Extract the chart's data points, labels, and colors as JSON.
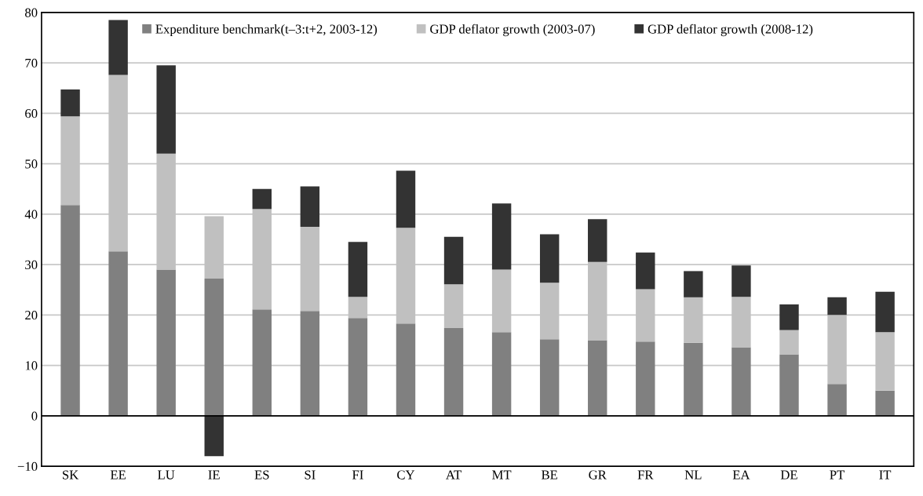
{
  "chart_data": {
    "type": "bar",
    "stacked": true,
    "categories": [
      "SK",
      "EE",
      "LU",
      "IE",
      "ES",
      "SI",
      "FI",
      "CY",
      "AT",
      "MT",
      "BE",
      "GR",
      "FR",
      "NL",
      "EA",
      "DE",
      "PT",
      "IT"
    ],
    "series": [
      {
        "name": "Expenditure benchmark(t–3:t+2, 2003-12)",
        "color": "#808080",
        "values": [
          41.8,
          32.6,
          29.0,
          27.2,
          21.1,
          20.8,
          19.4,
          18.3,
          17.4,
          16.6,
          15.2,
          15.0,
          14.7,
          14.5,
          13.6,
          12.2,
          6.3,
          5.0
        ]
      },
      {
        "name": "GDP deflator growth (2003-07)",
        "color": "#c0c0c0",
        "values": [
          17.6,
          35.0,
          23.0,
          12.4,
          19.9,
          16.7,
          4.2,
          19.0,
          8.7,
          12.4,
          11.2,
          15.5,
          10.4,
          9.0,
          10.0,
          4.8,
          13.7,
          11.6
        ]
      },
      {
        "name": "GDP deflator growth (2008-12)",
        "color": "#333333",
        "values": [
          5.3,
          10.9,
          17.5,
          -8.0,
          4.0,
          8.0,
          10.9,
          11.3,
          9.4,
          13.1,
          9.6,
          8.5,
          7.3,
          5.2,
          6.2,
          5.1,
          3.5,
          8.0
        ]
      }
    ],
    "ylim": [
      -10,
      80
    ],
    "yticks": [
      {
        "value": -10,
        "label": "−10"
      },
      0,
      10,
      20,
      30,
      40,
      50,
      60,
      70,
      80
    ],
    "grid": "y",
    "legend": "top"
  }
}
